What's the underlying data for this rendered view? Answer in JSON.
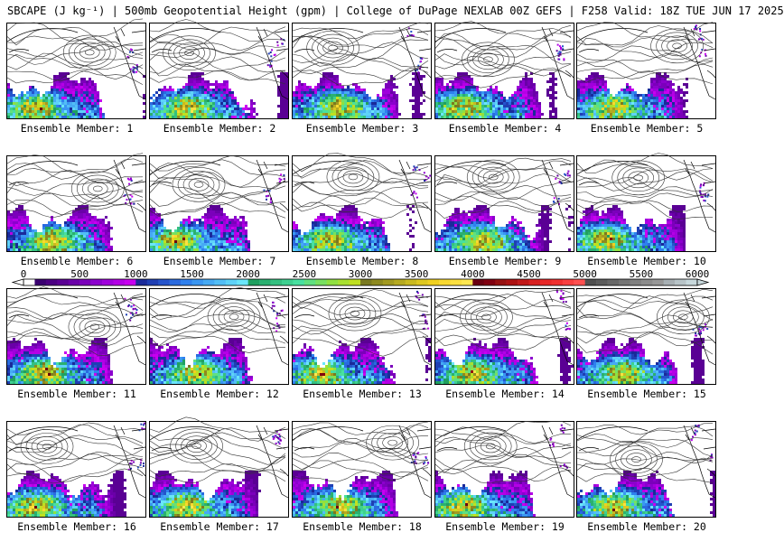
{
  "header": {
    "title": "SBCAPE (J kg⁻¹) | 500mb Geopotential Height (gpm) | College of DuPage NEXLAB 00Z GEFS | F258 Valid: 18Z TUE JUN 17 2025"
  },
  "members": [
    "Ensemble Member: 1",
    "Ensemble Member: 2",
    "Ensemble Member: 3",
    "Ensemble Member: 4",
    "Ensemble Member: 5",
    "Ensemble Member: 6",
    "Ensemble Member: 7",
    "Ensemble Member: 8",
    "Ensemble Member: 9",
    "Ensemble Member: 10",
    "Ensemble Member: 11",
    "Ensemble Member: 12",
    "Ensemble Member: 13",
    "Ensemble Member: 14",
    "Ensemble Member: 15",
    "Ensemble Member: 16",
    "Ensemble Member: 17",
    "Ensemble Member: 18",
    "Ensemble Member: 19",
    "Ensemble Member: 20"
  ],
  "colorbar": {
    "min": 0,
    "max": 6000,
    "step": 100,
    "tick_labels": [
      "0",
      "500",
      "1000",
      "1500",
      "2000",
      "2500",
      "3000",
      "3500",
      "4000",
      "4500",
      "5000",
      "5500",
      "6000"
    ],
    "colors": [
      "#ffffff",
      "#3a0070",
      "#4b0082",
      "#5a0094",
      "#6a00a8",
      "#7b00bb",
      "#8c00ce",
      "#a000dc",
      "#b400e6",
      "#c800f0",
      "#1a2a9a",
      "#1f3fb4",
      "#2554cc",
      "#2a6adf",
      "#2f80ee",
      "#3a96f2",
      "#46aaf4",
      "#52bef6",
      "#5ed2f8",
      "#6ae6fa",
      "#20a060",
      "#2ab070",
      "#34c080",
      "#3ed090",
      "#48e0a0",
      "#60e080",
      "#78e060",
      "#90e040",
      "#a8e030",
      "#c0e020",
      "#7a7a20",
      "#8e8a20",
      "#a29a20",
      "#b6aa20",
      "#caba20",
      "#dec820",
      "#f0d020",
      "#f8d830",
      "#fce040",
      "#ffe850",
      "#6a0010",
      "#800010",
      "#961010",
      "#ac1010",
      "#c21818",
      "#d82020",
      "#e82828",
      "#f03030",
      "#f84040",
      "#ff5050",
      "#505050",
      "#5c5c5c",
      "#686868",
      "#747474",
      "#808080",
      "#8c8c8c",
      "#989898",
      "#a8b0b4",
      "#b8c4c8",
      "#c8d8dc"
    ]
  },
  "panel_grid": {
    "columns": 5,
    "rows": 4
  }
}
